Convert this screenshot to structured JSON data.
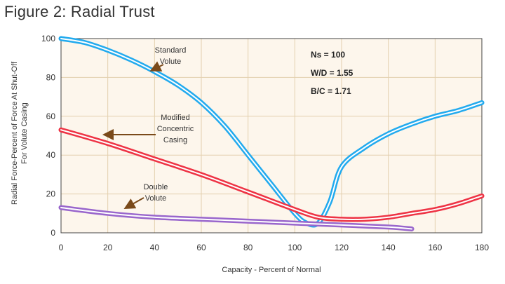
{
  "figure_title": "Figure 2: Radial Trust",
  "chart_data": {
    "type": "line",
    "xlabel": "Capacity - Percent of Normal",
    "ylabel_lines": [
      "Radial Force-Percent of Force At Shut-Off",
      "For Volute Casing"
    ],
    "xlim": [
      0,
      180
    ],
    "ylim": [
      0,
      100
    ],
    "xticks": [
      0,
      20,
      40,
      60,
      80,
      100,
      120,
      140,
      160,
      180
    ],
    "yticks": [
      0,
      20,
      40,
      60,
      80,
      100
    ],
    "grid": true,
    "series": [
      {
        "name": "Standard Volute",
        "label_lines": [
          "Standard",
          "Volute"
        ],
        "color": "#22aaee",
        "x": [
          0,
          10,
          20,
          30,
          40,
          50,
          60,
          70,
          80,
          90,
          100,
          105,
          110,
          115,
          120,
          130,
          140,
          150,
          160,
          170,
          180
        ],
        "y": [
          100,
          98,
          94,
          89,
          83,
          76,
          67,
          55,
          40,
          25,
          10,
          5,
          5,
          16,
          34,
          44,
          51,
          56,
          60,
          63,
          67
        ]
      },
      {
        "name": "Modified Concentric Casing",
        "label_lines": [
          "Modified",
          "Concentric",
          "Casing"
        ],
        "color": "#ee3344",
        "x": [
          0,
          20,
          40,
          60,
          80,
          100,
          110,
          120,
          130,
          140,
          150,
          160,
          170,
          180
        ],
        "y": [
          53,
          46,
          38,
          30,
          21,
          12,
          8,
          7,
          7,
          8,
          10,
          12,
          15,
          19
        ]
      },
      {
        "name": "Double Volute",
        "label_lines": [
          "Double",
          "Volute"
        ],
        "color": "#9966cc",
        "x": [
          0,
          20,
          40,
          60,
          80,
          100,
          120,
          140,
          150
        ],
        "y": [
          13,
          10,
          8,
          7,
          6,
          5,
          4,
          3,
          2
        ]
      }
    ],
    "parameters": [
      "Ns = 100",
      "W/D = 1.55",
      "B/C = 1.71"
    ]
  }
}
